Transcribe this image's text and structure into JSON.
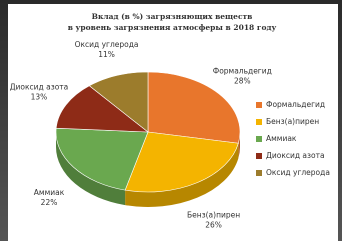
{
  "chart_data": {
    "type": "pie",
    "title": [
      "Вклад (в %) загрязняющих веществ",
      "в уровень загрязнения атмосферы в 2018 году"
    ],
    "categories": [
      "Формальдегид",
      "Бенз(а)пирен",
      "Аммиак",
      "Диоксид азота",
      "Оксид углерода"
    ],
    "values": [
      28,
      26,
      22,
      13,
      11
    ],
    "value_labels": [
      "28%",
      "26%",
      "22%",
      "13%",
      "11%"
    ],
    "colors": [
      "#e8762c",
      "#f4b400",
      "#6aa84f",
      "#8e2b17",
      "#9c7c2c"
    ],
    "legend": "right"
  }
}
